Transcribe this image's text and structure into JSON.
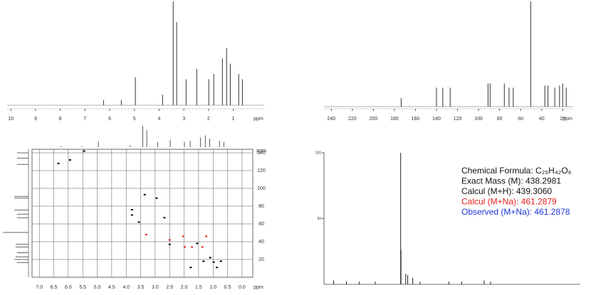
{
  "chart_data": [
    {
      "type": "spectrum",
      "xlabel": "ppm",
      "x": [
        6.25,
        5.53,
        4.96,
        3.86,
        3.43,
        3.29,
        2.91,
        2.48,
        1.99,
        1.79,
        1.44,
        1.27,
        1.12,
        0.78,
        0.63
      ],
      "values": [
        5,
        5,
        27,
        10,
        100,
        80,
        25,
        35,
        25,
        30,
        45,
        55,
        40,
        30,
        25
      ],
      "color": "#333333",
      "xlim": [
        10.15,
        -0.25
      ],
      "ylim": [
        0,
        100
      ],
      "xticks": [
        10,
        9,
        8,
        7,
        6,
        5,
        4,
        3,
        2,
        1
      ]
    },
    {
      "type": "spectrum",
      "xlabel": "ppm",
      "x": [
        173.6,
        140,
        134,
        127,
        91,
        89,
        75.5,
        71,
        67,
        50.4,
        37,
        34,
        27.5,
        23,
        20,
        16.6
      ],
      "values": [
        8,
        18,
        18,
        18,
        22,
        22,
        22,
        18,
        18,
        100,
        20,
        20,
        18,
        20,
        22,
        18
      ],
      "color": "#333333",
      "xlim": [
        247,
        10
      ],
      "ylim": [
        0,
        100
      ],
      "xticks": [
        240,
        220,
        200,
        180,
        160,
        140,
        120,
        100,
        80,
        60,
        40,
        20
      ]
    },
    {
      "type": "scatter",
      "ylabel": "ppm",
      "xlabel": "ppm",
      "grid": true,
      "xlim": [
        7.25,
        -0.37
      ],
      "ylim": [
        0,
        144
      ],
      "xticks": [
        {
          "value": 7,
          "label": "7.0"
        },
        {
          "value": 6.5,
          "label": "6.5"
        },
        {
          "value": 6,
          "label": "6.0"
        },
        {
          "value": 5.5,
          "label": "5.5"
        },
        {
          "value": 5,
          "label": "5.0"
        },
        {
          "value": 4.5,
          "label": "4.5"
        },
        {
          "value": 4,
          "label": "4.0"
        },
        {
          "value": 3.5,
          "label": "3.5"
        },
        {
          "value": 3,
          "label": "3.0"
        },
        {
          "value": 2.5,
          "label": "2.5"
        },
        {
          "value": 2,
          "label": "2.0"
        },
        {
          "value": 1.5,
          "label": "1.5"
        },
        {
          "value": 1,
          "label": "1.0"
        },
        {
          "value": 0.5,
          "label": "0.5"
        },
        {
          "value": 0,
          "label": "0.0"
        }
      ],
      "yticks": [
        20,
        40,
        60,
        80,
        100,
        120,
        140
      ],
      "series": [
        {
          "color": "#000000",
          "x": [
            6.34,
            5.94,
            5.45,
            3.8,
            3.8,
            3.56,
            3.36,
            2.95,
            2.68,
            2.5,
            1.77,
            1.55,
            1.33,
            1.1,
            0.98,
            0.87,
            0.73
          ],
          "values": [
            128,
            132,
            142,
            70,
            76,
            62,
            93,
            89,
            67,
            37,
            11,
            38,
            18,
            22,
            17,
            11,
            18
          ]
        },
        {
          "color": "#e8201c",
          "x": [
            3.31,
            2.5,
            1.98,
            1.73,
            1.37,
            1.24,
            2.03
          ],
          "values": [
            48,
            42,
            34,
            34,
            34,
            46,
            46
          ]
        }
      ]
    },
    {
      "type": "bar",
      "color": "#222222",
      "xlim": [
        200,
        1000
      ],
      "ylim": [
        0,
        100
      ],
      "x": [
        230,
        270,
        310,
        360,
        439.3,
        440.3,
        455,
        461.3,
        477,
        500,
        590,
        630,
        700,
        720
      ],
      "values": [
        3,
        2,
        2,
        2,
        100,
        26,
        8,
        7,
        5,
        2,
        2,
        2,
        3,
        2
      ],
      "yticks": [
        50,
        100
      ],
      "annotations": [
        {
          "text": "Chemical Formula: C₂₅H₄₂O₆",
          "color": "#111111"
        },
        {
          "text": "Exact Mass (M): 438.2981",
          "color": "#111111"
        },
        {
          "text": "Calcul (M+H): 439.3060",
          "color": "#111111"
        },
        {
          "text": "Calcul (M+Na): 461.2879",
          "color": "#e8201c"
        },
        {
          "text": "Observed (M+Na): 461.2878",
          "color": "#1f35d6"
        }
      ]
    }
  ]
}
